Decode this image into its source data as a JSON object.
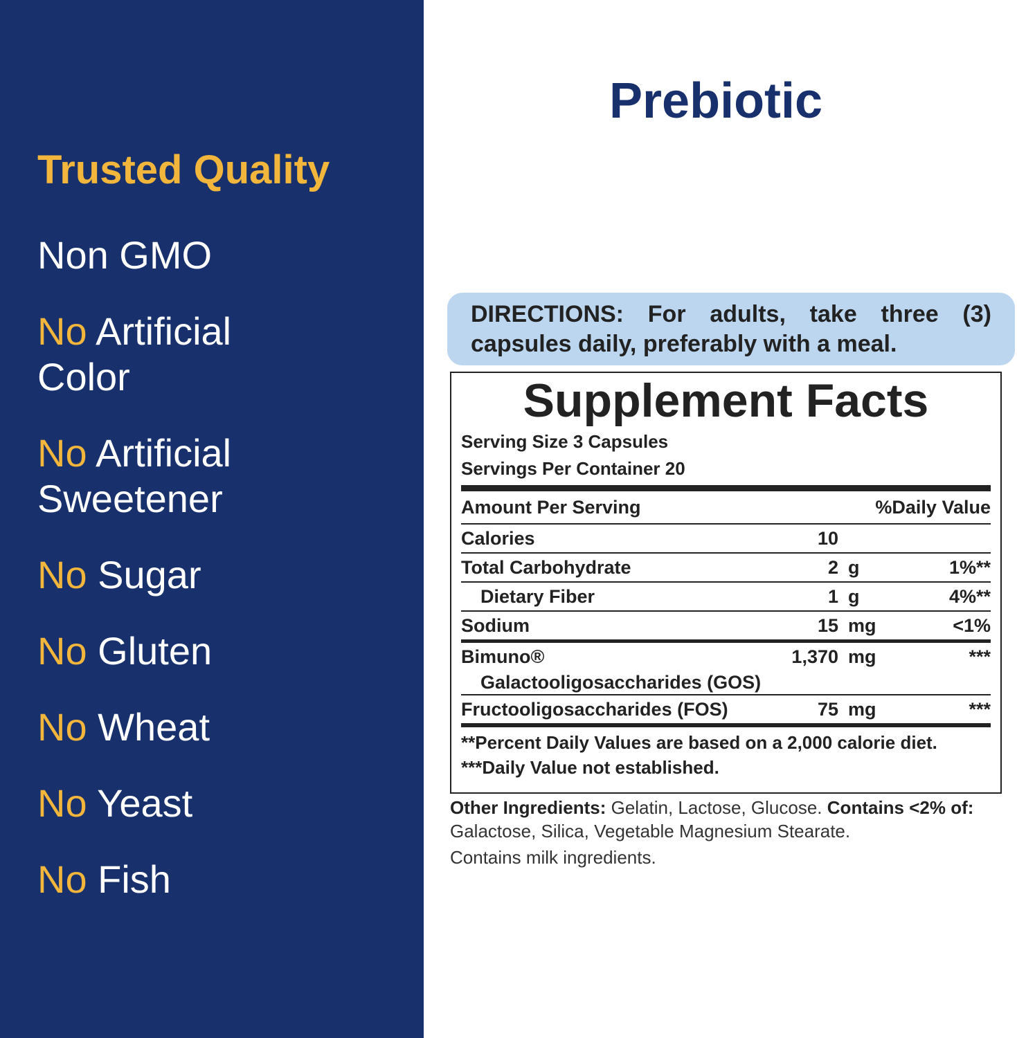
{
  "sidebar": {
    "heading": "Trusted Quality",
    "items": [
      {
        "text": "Non GMO"
      },
      {
        "prefix": "No",
        "text": "Artificial Color"
      },
      {
        "prefix": "No",
        "text": "Artificial Sweetener"
      },
      {
        "prefix": "No",
        "text": "Sugar"
      },
      {
        "prefix": "No",
        "text": "Gluten"
      },
      {
        "prefix": "No",
        "text": "Wheat"
      },
      {
        "prefix": "No",
        "text": "Yeast"
      },
      {
        "prefix": "No",
        "text": "Fish"
      }
    ]
  },
  "title": "Prebiotic",
  "directions": "DIRECTIONS: For adults, take three (3) capsules daily, preferably with a meal.",
  "facts": {
    "title": "Supplement Facts",
    "serving_size": "Serving Size 3 Capsules",
    "servings": "Servings Per Container 20",
    "header": [
      "Amount Per Serving",
      "%Daily Value"
    ],
    "rows": [
      {
        "name": "Calories",
        "amount": "10",
        "unit": "",
        "dv": ""
      },
      {
        "name": "Total Carbohydrate",
        "amount": "2",
        "unit": "g",
        "dv": "1%**"
      },
      {
        "name": "Dietary Fiber",
        "amount": "1",
        "unit": "g",
        "dv": "4%**",
        "indent": true
      },
      {
        "name": "Sodium",
        "amount": "15",
        "unit": "mg",
        "dv": "<1%"
      },
      {
        "name": "Bimuno®",
        "subname": "Galactooligosaccharides (GOS)",
        "amount": "1,370",
        "unit": "mg",
        "dv": "***"
      },
      {
        "name": "Fructooligosaccharides (FOS)",
        "amount": "75",
        "unit": "mg",
        "dv": "***"
      }
    ],
    "footnotes": [
      "**Percent Daily Values are based on a 2,000 calorie diet.",
      "***Daily Value not established."
    ]
  },
  "other": {
    "label": "Other Ingredients:",
    "text": "Gelatin, Lactose, Glucose.",
    "label2": "Contains <2% of:",
    "text2": "Galactose, Silica, Vegetable Magnesium Stearate.",
    "allergen": "Contains milk ingredients."
  }
}
